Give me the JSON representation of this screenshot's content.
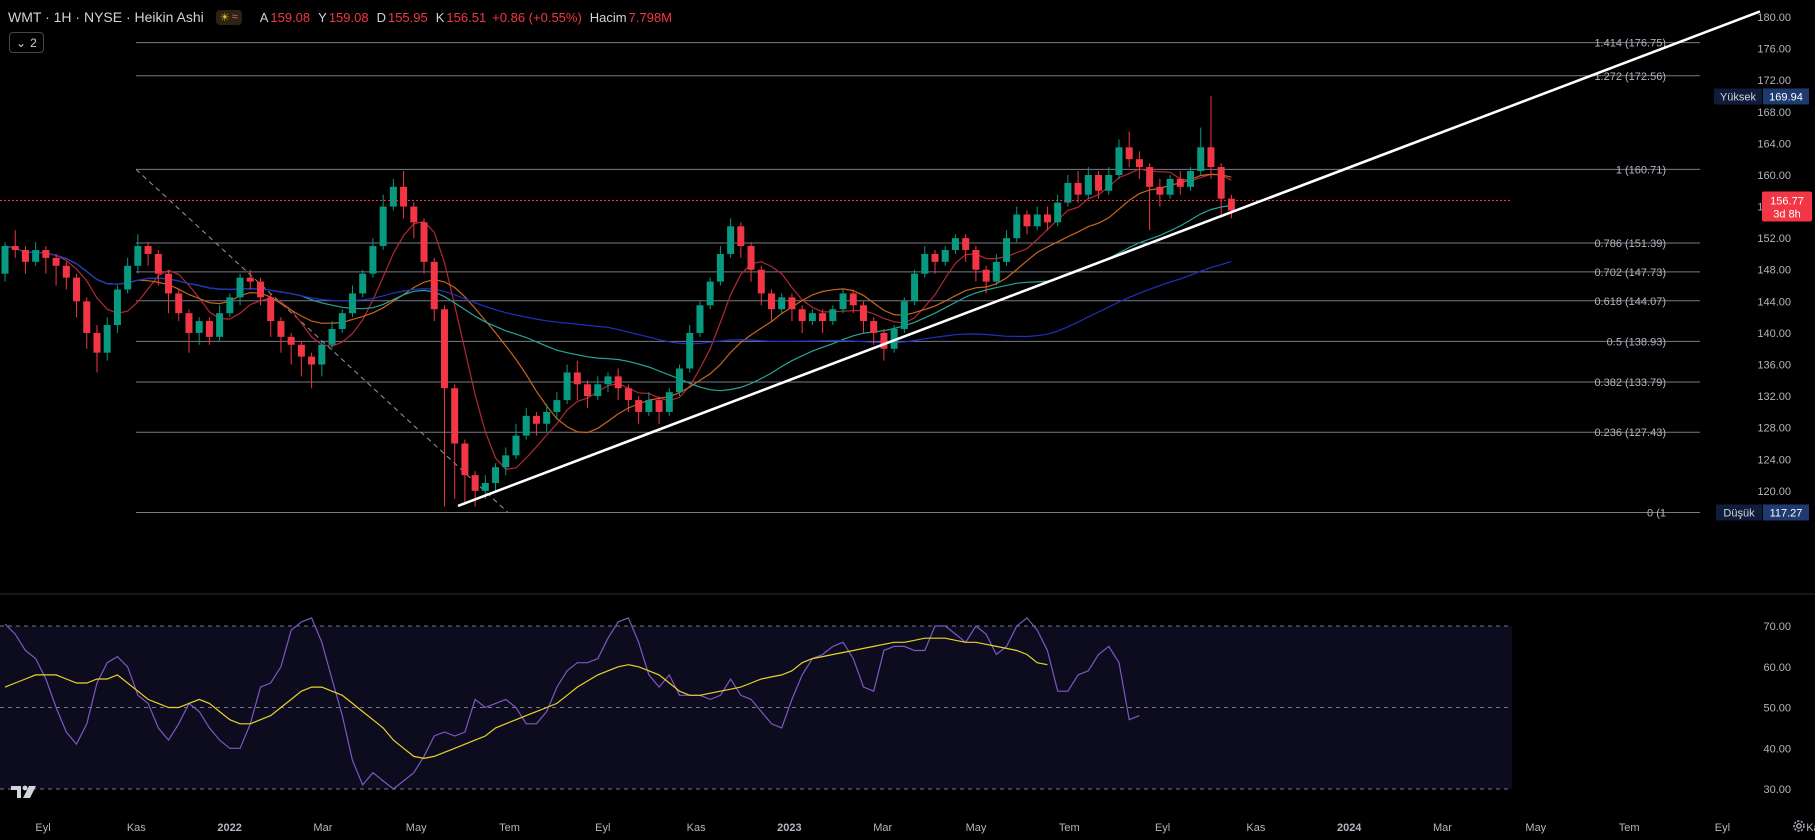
{
  "legend": {
    "symbol": "WMT · 1H · NYSE · Heikin Ashi",
    "icons": [
      "sun-icon",
      "wave-icon"
    ],
    "open_label": "A",
    "open": "159.08",
    "high_label": "Y",
    "high": "159.08",
    "low_label": "D",
    "low": "155.95",
    "close_label": "K",
    "close": "156.51",
    "change": "+0.86 (+0.55%)",
    "volume_label": "Hacim",
    "volume": "7.798M"
  },
  "collapse_button": {
    "icon": "chevron-down-icon",
    "count": "2"
  },
  "colors": {
    "background": "#000000",
    "up": "#089981",
    "down": "#f23645",
    "trendline": "#ffffff",
    "fib_line": "#787b86",
    "rsi_line": "#7e57c2",
    "rsi_ma": "#e8d32a",
    "ma_red": "#b22833",
    "ma_orange": "#c8661e",
    "ma_teal": "#26a69a",
    "ma_blue": "#2030c0"
  },
  "price_axis": {
    "ticks": [
      "180.00",
      "176.00",
      "172.00",
      "168.00",
      "164.00",
      "160.00",
      "156.00",
      "152.00",
      "148.00",
      "144.00",
      "140.00",
      "136.00",
      "132.00",
      "128.00",
      "124.00",
      "120.00"
    ],
    "high_marker": {
      "label": "Yüksek",
      "value": "169.94"
    },
    "low_marker": {
      "label": "Düşük",
      "value": "117.27"
    },
    "current": {
      "value": "156.77",
      "countdown": "3d 8h"
    }
  },
  "fib_levels": [
    {
      "ratio": 1.414,
      "price": 176.75,
      "label": "1.414 (176.75)"
    },
    {
      "ratio": 1.272,
      "price": 172.56,
      "label": "1.272 (172.56)"
    },
    {
      "ratio": 1,
      "price": 160.71,
      "label": "1 (160.71)"
    },
    {
      "ratio": 0.786,
      "price": 151.39,
      "label": "0.786 (151.39)"
    },
    {
      "ratio": 0.702,
      "price": 147.73,
      "label": "0.702 (147.73)"
    },
    {
      "ratio": 0.618,
      "price": 144.07,
      "label": "0.618 (144.07)"
    },
    {
      "ratio": 0.5,
      "price": 138.93,
      "label": "0.5 (138.93)"
    },
    {
      "ratio": 0.382,
      "price": 133.79,
      "label": "0.382 (133.79)"
    },
    {
      "ratio": 0.236,
      "price": 127.43,
      "label": "0.236 (127.43)"
    },
    {
      "ratio": 0,
      "price": 117.27,
      "label": "0 (1"
    }
  ],
  "time_axis": {
    "labels": [
      "Eyl",
      "Kas",
      "2022",
      "Mar",
      "May",
      "Tem",
      "Eyl",
      "Kas",
      "2023",
      "Mar",
      "May",
      "Tem",
      "Eyl",
      "Kas",
      "2024",
      "Mar",
      "May",
      "Tem",
      "Eyl",
      "Kas"
    ],
    "bold": [
      "2022",
      "2023",
      "2024"
    ]
  },
  "rsi_axis": {
    "ticks": [
      "70.00",
      "60.00",
      "50.00",
      "40.00",
      "30.00"
    ]
  },
  "chart_data": [
    {
      "type": "candlestick",
      "symbol": "WMT",
      "style": "Heikin Ashi",
      "ylim": [
        116,
        182
      ],
      "bars": [
        [
          147.5,
          151.0,
          146.5,
          151.5
        ],
        [
          151.0,
          150.5,
          149.5,
          153.0
        ],
        [
          150.5,
          149.0,
          147.5,
          151.0
        ],
        [
          149.0,
          150.5,
          148.5,
          151.5
        ],
        [
          150.5,
          149.5,
          147.5,
          151.0
        ],
        [
          149.5,
          148.5,
          146.0,
          150.0
        ],
        [
          148.5,
          147.0,
          145.5,
          149.0
        ],
        [
          147.0,
          144.0,
          142.0,
          147.5
        ],
        [
          144.0,
          140.0,
          138.0,
          144.5
        ],
        [
          140.0,
          137.5,
          135.0,
          141.0
        ],
        [
          137.5,
          141.0,
          136.5,
          142.0
        ],
        [
          141.0,
          145.5,
          140.0,
          146.0
        ],
        [
          145.5,
          148.5,
          145.0,
          149.5
        ],
        [
          148.5,
          151.0,
          147.5,
          152.5
        ],
        [
          151.0,
          150.0,
          148.5,
          151.5
        ],
        [
          150.0,
          147.5,
          146.0,
          150.5
        ],
        [
          147.5,
          145.0,
          142.5,
          148.0
        ],
        [
          145.0,
          142.5,
          141.5,
          145.5
        ],
        [
          142.5,
          140.0,
          137.5,
          143.0
        ],
        [
          140.0,
          141.5,
          138.5,
          142.0
        ],
        [
          141.5,
          139.5,
          138.5,
          142.0
        ],
        [
          139.5,
          142.5,
          139.0,
          143.5
        ],
        [
          142.5,
          144.5,
          142.0,
          145.0
        ],
        [
          144.5,
          147.0,
          143.5,
          147.5
        ],
        [
          147.0,
          146.5,
          145.5,
          148.0
        ],
        [
          146.5,
          144.5,
          143.5,
          147.0
        ],
        [
          144.5,
          141.5,
          139.5,
          145.0
        ],
        [
          141.5,
          139.5,
          137.5,
          142.0
        ],
        [
          139.5,
          138.5,
          136.0,
          140.0
        ],
        [
          138.5,
          137.0,
          134.5,
          139.0
        ],
        [
          137.0,
          136.0,
          133.0,
          137.5
        ],
        [
          136.0,
          138.5,
          134.5,
          139.0
        ],
        [
          138.5,
          140.5,
          138.0,
          141.5
        ],
        [
          140.5,
          142.5,
          140.0,
          143.0
        ],
        [
          142.5,
          145.0,
          142.0,
          146.0
        ],
        [
          145.0,
          147.5,
          144.5,
          148.0
        ],
        [
          147.5,
          151.0,
          147.0,
          152.0
        ],
        [
          151.0,
          156.0,
          150.5,
          157.5
        ],
        [
          156.0,
          158.5,
          155.5,
          159.5
        ],
        [
          158.5,
          156.0,
          154.5,
          160.5
        ],
        [
          156.0,
          154.0,
          152.0,
          156.5
        ],
        [
          154.0,
          149.0,
          147.5,
          154.5
        ],
        [
          149.0,
          143.0,
          141.5,
          149.5
        ],
        [
          143.0,
          133.0,
          118.0,
          143.5
        ],
        [
          133.0,
          126.0,
          119.0,
          133.5
        ],
        [
          126.0,
          122.0,
          118.5,
          126.5
        ],
        [
          122.0,
          120.0,
          118.0,
          122.5
        ],
        [
          120.0,
          121.0,
          119.0,
          122.0
        ],
        [
          121.0,
          123.0,
          120.0,
          123.5
        ],
        [
          123.0,
          124.5,
          122.0,
          125.5
        ],
        [
          124.5,
          127.0,
          124.0,
          128.5
        ],
        [
          127.0,
          129.5,
          126.5,
          130.5
        ],
        [
          129.5,
          128.5,
          127.0,
          130.0
        ],
        [
          128.5,
          130.0,
          127.5,
          131.0
        ],
        [
          130.0,
          131.5,
          129.0,
          132.5
        ],
        [
          131.5,
          135.0,
          131.0,
          136.0
        ],
        [
          135.0,
          133.5,
          131.5,
          136.5
        ],
        [
          133.5,
          132.0,
          130.5,
          134.0
        ],
        [
          132.0,
          133.5,
          131.5,
          134.5
        ],
        [
          133.5,
          134.5,
          132.5,
          135.0
        ],
        [
          134.5,
          133.0,
          131.5,
          135.5
        ],
        [
          133.0,
          131.5,
          130.0,
          133.5
        ],
        [
          131.5,
          130.0,
          128.5,
          132.0
        ],
        [
          130.0,
          131.5,
          129.5,
          132.5
        ],
        [
          131.5,
          130.0,
          128.5,
          132.0
        ],
        [
          130.0,
          132.5,
          129.5,
          133.0
        ],
        [
          132.5,
          135.5,
          132.0,
          136.0
        ],
        [
          135.5,
          140.0,
          135.0,
          141.0
        ],
        [
          140.0,
          143.5,
          139.5,
          144.0
        ],
        [
          143.5,
          146.5,
          143.0,
          147.0
        ],
        [
          146.5,
          150.0,
          146.0,
          151.0
        ],
        [
          150.0,
          153.5,
          149.5,
          154.5
        ],
        [
          153.5,
          151.0,
          149.5,
          154.0
        ],
        [
          151.0,
          148.0,
          146.5,
          151.5
        ],
        [
          148.0,
          145.0,
          143.5,
          148.5
        ],
        [
          145.0,
          143.0,
          141.5,
          145.5
        ],
        [
          143.0,
          144.5,
          142.5,
          145.0
        ],
        [
          144.5,
          143.0,
          141.5,
          145.0
        ],
        [
          143.0,
          141.5,
          140.0,
          143.5
        ],
        [
          141.5,
          142.5,
          141.0,
          143.0
        ],
        [
          142.5,
          141.5,
          140.0,
          143.0
        ],
        [
          141.5,
          143.0,
          141.0,
          143.5
        ],
        [
          143.0,
          145.0,
          142.5,
          145.5
        ],
        [
          145.0,
          143.5,
          142.5,
          145.5
        ],
        [
          143.5,
          141.5,
          140.0,
          144.0
        ],
        [
          141.5,
          140.0,
          138.5,
          142.0
        ],
        [
          140.0,
          138.0,
          136.5,
          140.5
        ],
        [
          138.0,
          140.5,
          137.5,
          141.0
        ],
        [
          140.5,
          144.0,
          140.0,
          144.5
        ],
        [
          144.0,
          147.5,
          143.5,
          148.0
        ],
        [
          147.5,
          150.0,
          147.0,
          151.0
        ],
        [
          150.0,
          149.0,
          147.5,
          150.5
        ],
        [
          149.0,
          150.5,
          148.5,
          151.0
        ],
        [
          150.5,
          152.0,
          150.0,
          152.5
        ],
        [
          152.0,
          150.5,
          149.0,
          152.5
        ],
        [
          150.5,
          148.0,
          146.5,
          151.0
        ],
        [
          148.0,
          146.5,
          145.0,
          148.5
        ],
        [
          146.5,
          149.0,
          146.0,
          150.0
        ],
        [
          149.0,
          152.0,
          148.5,
          153.0
        ],
        [
          152.0,
          155.0,
          151.5,
          156.0
        ],
        [
          155.0,
          153.5,
          152.5,
          155.5
        ],
        [
          153.5,
          155.0,
          153.0,
          156.0
        ],
        [
          155.0,
          154.0,
          153.0,
          156.0
        ],
        [
          154.0,
          156.5,
          153.5,
          157.5
        ],
        [
          156.5,
          159.0,
          156.0,
          160.0
        ],
        [
          159.0,
          157.5,
          156.5,
          160.5
        ],
        [
          157.5,
          160.0,
          157.0,
          161.0
        ],
        [
          160.0,
          158.0,
          157.0,
          160.5
        ],
        [
          158.0,
          160.0,
          157.5,
          161.0
        ],
        [
          160.0,
          163.5,
          159.5,
          164.5
        ],
        [
          163.5,
          162.0,
          161.0,
          165.5
        ],
        [
          162.0,
          161.0,
          159.5,
          163.0
        ],
        [
          161.0,
          158.5,
          153.0,
          161.5
        ],
        [
          158.5,
          157.5,
          156.0,
          159.5
        ],
        [
          157.5,
          159.5,
          157.0,
          160.0
        ],
        [
          159.5,
          158.5,
          157.5,
          160.5
        ],
        [
          158.5,
          160.5,
          158.0,
          161.0
        ],
        [
          160.5,
          163.5,
          160.0,
          166.0
        ],
        [
          163.5,
          161.0,
          159.5,
          170.0
        ],
        [
          161.0,
          157.0,
          155.0,
          161.5
        ],
        [
          157.0,
          155.5,
          154.5,
          157.5
        ]
      ]
    },
    {
      "type": "line",
      "name": "RSI",
      "ylim": [
        27,
        73
      ],
      "bands": [
        30,
        50,
        70
      ],
      "series": [
        {
          "values": [
            70.5,
            68,
            64,
            62,
            57,
            50,
            44,
            41,
            46,
            56,
            61,
            62.5,
            60,
            53,
            51,
            45,
            42,
            46,
            51,
            49,
            45,
            42,
            40,
            40,
            46,
            55,
            56,
            60,
            69,
            71,
            72,
            66,
            57,
            48,
            37,
            31,
            34,
            32,
            30,
            32,
            34,
            38,
            43,
            44,
            43,
            44,
            52,
            50,
            51,
            52,
            50,
            46,
            46,
            49,
            55,
            59,
            61,
            61,
            62,
            67,
            71,
            72,
            66,
            58,
            55,
            58,
            53,
            53,
            53,
            52,
            53,
            57,
            53,
            52,
            49,
            46,
            45,
            52,
            58,
            62,
            63,
            65,
            66,
            62,
            55,
            54,
            64,
            65,
            65,
            64,
            64,
            70,
            70,
            68,
            66,
            70,
            68,
            63,
            65,
            70,
            72,
            69,
            64,
            54,
            54,
            58,
            59,
            63,
            65,
            61,
            47,
            48
          ]
        },
        {
          "values": [
            55,
            56,
            57,
            58,
            58,
            58,
            57,
            56,
            56,
            57,
            57,
            58,
            56,
            54,
            52,
            51,
            50,
            50,
            51,
            52,
            51,
            49,
            47,
            46,
            46,
            47,
            48,
            50,
            52,
            54,
            55,
            55,
            54,
            53,
            51,
            49,
            47,
            45,
            42,
            40,
            38,
            37.5,
            38,
            39,
            40,
            41,
            42,
            43,
            45,
            46,
            47,
            48,
            49,
            50,
            51,
            53,
            55,
            56.5,
            58,
            59,
            60,
            60.5,
            60,
            59,
            58,
            56,
            54,
            53,
            53,
            53.5,
            54,
            54.5,
            55,
            56,
            57,
            57.5,
            58,
            59,
            61,
            62,
            62.5,
            63,
            63.5,
            64,
            64.5,
            65,
            65.5,
            66,
            66,
            66.5,
            67,
            67,
            67,
            66.5,
            66,
            66,
            65.5,
            65,
            64.5,
            64,
            63,
            61,
            60.5
          ]
        }
      ]
    }
  ]
}
